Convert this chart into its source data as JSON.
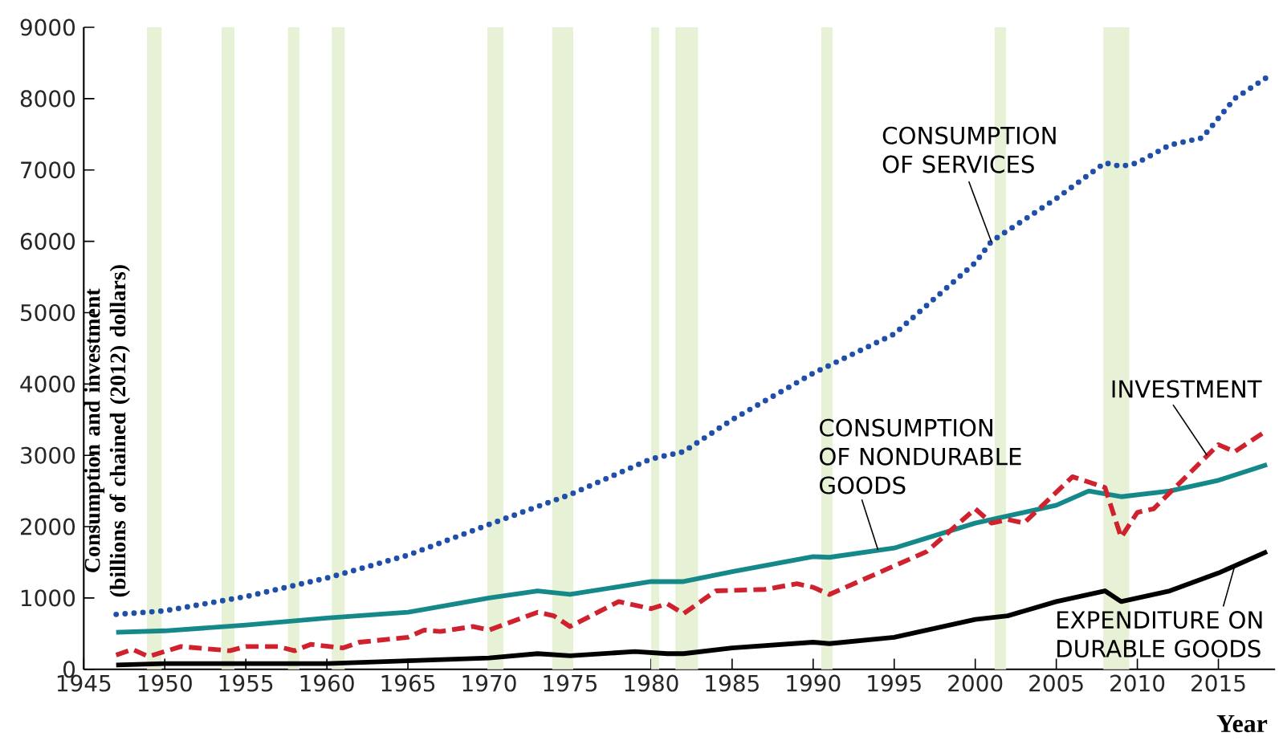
{
  "chart_data": {
    "type": "line",
    "xlabel": "Year",
    "ylabel": "Consumption and investment (billions of chained (2012) dollars)",
    "xlim": [
      1945,
      2018.5
    ],
    "ylim": [
      0,
      9000
    ],
    "xticks": [
      1945,
      1950,
      1955,
      1960,
      1965,
      1970,
      1975,
      1980,
      1985,
      1990,
      1995,
      2000,
      2005,
      2010,
      2015
    ],
    "yticks": [
      0,
      1000,
      2000,
      3000,
      4000,
      5000,
      6000,
      7000,
      8000,
      9000
    ],
    "bands": [
      {
        "axis": "x",
        "from": 1948.9,
        "to": 1949.8,
        "color": "#e6f1d6"
      },
      {
        "axis": "x",
        "from": 1953.5,
        "to": 1954.3,
        "color": "#e6f1d6"
      },
      {
        "axis": "x",
        "from": 1957.6,
        "to": 1958.3,
        "color": "#e6f1d6"
      },
      {
        "axis": "x",
        "from": 1960.3,
        "to": 1961.1,
        "color": "#e6f1d6"
      },
      {
        "axis": "x",
        "from": 1969.9,
        "to": 1970.9,
        "color": "#e6f1d6"
      },
      {
        "axis": "x",
        "from": 1973.9,
        "to": 1975.2,
        "color": "#e6f1d6"
      },
      {
        "axis": "x",
        "from": 1980.0,
        "to": 1980.5,
        "color": "#e6f1d6"
      },
      {
        "axis": "x",
        "from": 1981.5,
        "to": 1982.9,
        "color": "#e6f1d6"
      },
      {
        "axis": "x",
        "from": 1990.5,
        "to": 1991.2,
        "color": "#e6f1d6"
      },
      {
        "axis": "x",
        "from": 2001.2,
        "to": 2001.9,
        "color": "#e6f1d6"
      },
      {
        "axis": "x",
        "from": 2007.9,
        "to": 2009.5,
        "color": "#e6f1d6"
      }
    ],
    "series": [
      {
        "name": "CONSUMPTION OF SERVICES",
        "color": "#1f4fa8",
        "line_style": "dotted",
        "x": [
          1947,
          1950,
          1955,
          1960,
          1965,
          1970,
          1975,
          1980,
          1982,
          1985,
          1990,
          1995,
          2000,
          2001,
          2005,
          2008,
          2009,
          2010,
          2012,
          2014,
          2016,
          2018
        ],
        "values": [
          770,
          820,
          1020,
          1280,
          1600,
          2030,
          2450,
          2950,
          3050,
          3500,
          4150,
          4700,
          5700,
          6000,
          6600,
          7100,
          7050,
          7100,
          7350,
          7450,
          8000,
          8300
        ]
      },
      {
        "name": "CONSUMPTION OF NONDURABLE GOODS",
        "color": "#15898a",
        "line_style": "solid",
        "x": [
          1947,
          1950,
          1955,
          1960,
          1965,
          1970,
          1973,
          1975,
          1980,
          1982,
          1985,
          1990,
          1991,
          1995,
          2000,
          2005,
          2007,
          2009,
          2012,
          2015,
          2018
        ],
        "values": [
          520,
          540,
          620,
          720,
          800,
          1000,
          1100,
          1050,
          1230,
          1230,
          1370,
          1580,
          1570,
          1700,
          2050,
          2300,
          2500,
          2420,
          2500,
          2650,
          2870
        ]
      },
      {
        "name": "INVESTMENT",
        "color": "#d0222e",
        "line_style": "dashed",
        "x": [
          1947,
          1948,
          1949,
          1951,
          1953,
          1954,
          1955,
          1957,
          1958,
          1959,
          1961,
          1962,
          1965,
          1966,
          1967,
          1969,
          1970,
          1973,
          1974,
          1975,
          1978,
          1980,
          1981,
          1982,
          1984,
          1987,
          1989,
          1990,
          1991,
          1994,
          1997,
          2000,
          2001,
          2002,
          2003,
          2006,
          2008,
          2009,
          2010,
          2011,
          2013,
          2015,
          2016,
          2018
        ],
        "values": [
          200,
          280,
          180,
          320,
          280,
          260,
          320,
          320,
          260,
          350,
          300,
          380,
          450,
          550,
          530,
          600,
          550,
          800,
          750,
          600,
          950,
          850,
          920,
          780,
          1100,
          1120,
          1200,
          1150,
          1050,
          1350,
          1650,
          2250,
          2050,
          2100,
          2050,
          2700,
          2550,
          1850,
          2200,
          2250,
          2700,
          3150,
          3050,
          3350
        ]
      },
      {
        "name": "EXPENDITURE ON DURABLE GOODS",
        "color": "#000000",
        "line_style": "solid",
        "x": [
          1947,
          1950,
          1955,
          1960,
          1965,
          1970,
          1973,
          1975,
          1979,
          1981,
          1982,
          1985,
          1990,
          1991,
          1995,
          2000,
          2002,
          2005,
          2008,
          2009,
          2012,
          2015,
          2018
        ],
        "values": [
          60,
          80,
          80,
          80,
          120,
          160,
          220,
          190,
          250,
          220,
          220,
          300,
          380,
          360,
          450,
          700,
          750,
          950,
          1100,
          950,
          1100,
          1350,
          1650
        ]
      }
    ]
  }
}
